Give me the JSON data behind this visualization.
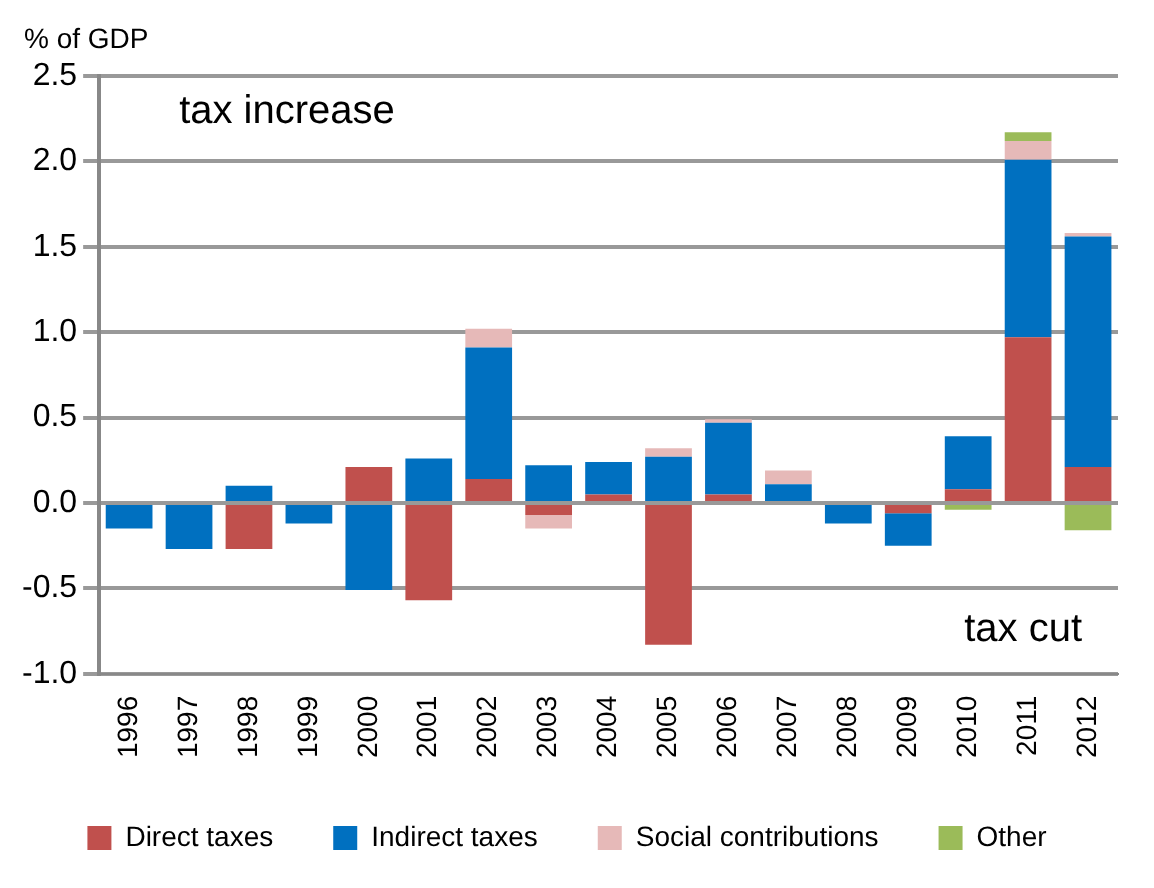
{
  "chart_data": {
    "type": "bar",
    "stacked": true,
    "ylabel": "% of GDP",
    "categories": [
      "1996",
      "1997",
      "1998",
      "1999",
      "2000",
      "2001",
      "2002",
      "2003",
      "2004",
      "2005",
      "2006",
      "2007",
      "2008",
      "2009",
      "2010",
      "2011",
      "2012"
    ],
    "series": [
      {
        "name": "Direct taxes",
        "color": "#c0504d",
        "values": [
          null,
          null,
          -0.27,
          null,
          0.21,
          -0.57,
          0.14,
          -0.07,
          0.05,
          -0.83,
          0.05,
          null,
          null,
          -0.06,
          0.08,
          0.97,
          0.21
        ]
      },
      {
        "name": "Indirect taxes",
        "color": "#0070c0",
        "values": [
          -0.15,
          -0.27,
          0.1,
          -0.12,
          -0.51,
          0.26,
          0.77,
          0.22,
          0.19,
          0.27,
          0.42,
          0.11,
          -0.12,
          -0.19,
          0.31,
          1.04,
          1.35
        ]
      },
      {
        "name": "Social contributions",
        "color": "#e6b9b8",
        "values": [
          null,
          null,
          null,
          null,
          null,
          null,
          0.11,
          -0.08,
          null,
          0.05,
          0.02,
          0.08,
          null,
          null,
          null,
          0.11,
          0.02
        ]
      },
      {
        "name": "Other",
        "color": "#9bbb59",
        "values": [
          null,
          null,
          null,
          null,
          null,
          null,
          null,
          null,
          null,
          null,
          null,
          null,
          null,
          null,
          -0.04,
          0.05,
          -0.16
        ]
      }
    ],
    "ylim": [
      -1,
      2.5
    ],
    "yticks": [
      {
        "value": -1,
        "label": "-1.0"
      },
      {
        "value": -0.5,
        "label": "-0.5"
      },
      {
        "value": 0,
        "label": "0.0"
      },
      {
        "value": 0.5,
        "label": "0.5"
      },
      {
        "value": 1,
        "label": "1.0"
      },
      {
        "value": 1.5,
        "label": "1.5"
      },
      {
        "value": 2,
        "label": "2.0"
      },
      {
        "value": 2.5,
        "label": "2.5"
      }
    ],
    "grid": "y",
    "legend": "bottom",
    "annotations": [
      "tax increase",
      "tax cut"
    ]
  }
}
